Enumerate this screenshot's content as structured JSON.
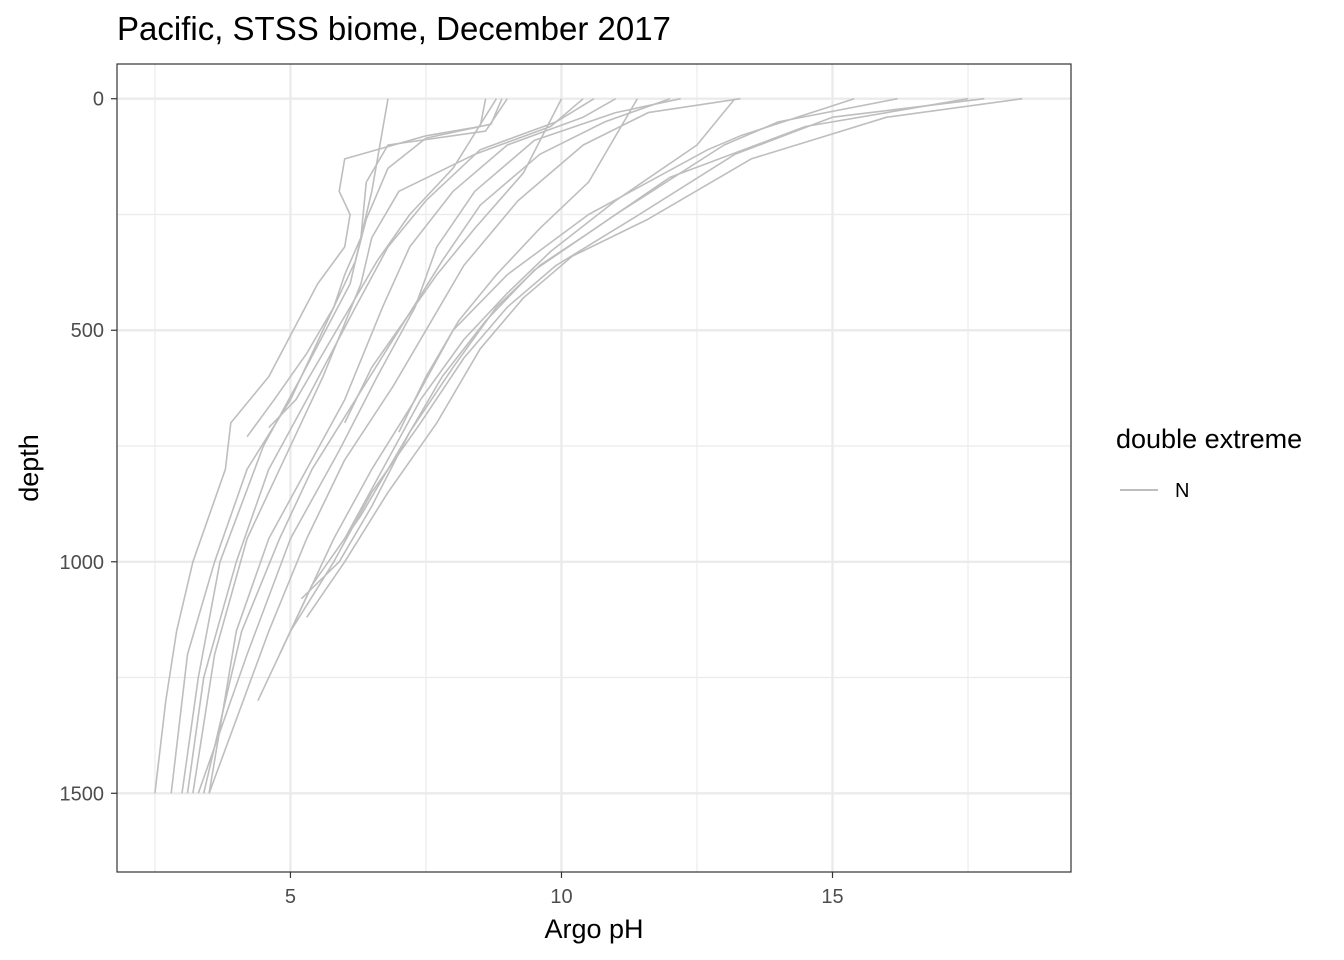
{
  "chart_data": {
    "type": "line",
    "title": "Pacific, STSS biome, December 2017",
    "xlabel": "Argo pH",
    "ylabel": "depth",
    "xlim": [
      1.8,
      19.4
    ],
    "ylim": [
      1670,
      -75
    ],
    "y_reversed": true,
    "xticks": [
      5,
      10,
      15
    ],
    "yticks": [
      0,
      500,
      1000,
      1500
    ],
    "grid": true,
    "line_color": "#bebebe",
    "legend": {
      "title": "double extreme",
      "placement": "right",
      "entries": [
        "N"
      ]
    },
    "series": [
      {
        "x": [
          8.6,
          8.5,
          7.5,
          6.0,
          5.9,
          6.1,
          6.0,
          5.5,
          4.6,
          3.9,
          3.8,
          3.2,
          2.9,
          2.7,
          2.5
        ],
        "y": [
          0,
          60,
          80,
          130,
          200,
          250,
          320,
          400,
          600,
          700,
          800,
          1000,
          1150,
          1300,
          1500
        ]
      },
      {
        "x": [
          8.9,
          8.7,
          7.5,
          6.8,
          6.4,
          6.2,
          5.6,
          5.0,
          4.2,
          3.6,
          3.1,
          2.8
        ],
        "y": [
          0,
          55,
          85,
          150,
          260,
          350,
          500,
          650,
          800,
          1000,
          1200,
          1500
        ]
      },
      {
        "x": [
          9.0,
          8.6,
          6.8,
          6.4,
          6.3,
          6.1,
          5.2,
          4.5,
          3.7,
          3.3,
          3.0
        ],
        "y": [
          0,
          70,
          100,
          180,
          300,
          400,
          600,
          750,
          1000,
          1250,
          1500
        ]
      },
      {
        "x": [
          10.4,
          9.8,
          8.4,
          7.0,
          6.5,
          6.3,
          5.6,
          4.8,
          4.2,
          3.6,
          3.2
        ],
        "y": [
          0,
          60,
          120,
          200,
          300,
          400,
          600,
          800,
          950,
          1200,
          1500
        ]
      },
      {
        "x": [
          10.6,
          9.9,
          8.5,
          7.5,
          6.8,
          6.2,
          5.3,
          4.6,
          4.0,
          3.4,
          3.1
        ],
        "y": [
          0,
          50,
          110,
          220,
          320,
          450,
          650,
          800,
          1000,
          1250,
          1500
        ]
      },
      {
        "x": [
          11.0,
          10.4,
          9.0,
          8.0,
          7.2,
          6.7,
          6.0,
          5.3,
          4.6,
          4.0,
          3.5
        ],
        "y": [
          0,
          40,
          100,
          200,
          320,
          450,
          650,
          800,
          950,
          1150,
          1500
        ]
      },
      {
        "x": [
          12.2,
          11.0,
          9.5,
          8.4,
          7.7,
          7.3,
          6.6,
          5.9,
          5.0,
          4.2,
          3.3
        ],
        "y": [
          0,
          30,
          90,
          200,
          320,
          450,
          600,
          760,
          950,
          1200,
          1500
        ]
      },
      {
        "x": [
          12.0,
          10.8,
          9.6,
          8.5,
          7.8,
          7.0,
          6.2,
          5.4,
          4.8,
          4.1,
          3.4
        ],
        "y": [
          0,
          50,
          120,
          230,
          350,
          500,
          650,
          800,
          950,
          1150,
          1500
        ]
      },
      {
        "x": [
          13.3,
          11.6,
          10.4,
          9.2,
          8.2,
          7.5,
          6.9,
          6.0,
          5.3,
          4.6,
          3.5
        ],
        "y": [
          0,
          30,
          100,
          220,
          360,
          500,
          620,
          780,
          950,
          1150,
          1500
        ]
      },
      {
        "x": [
          15.4,
          13.3,
          12.7,
          10.5,
          9.0,
          8.0,
          7.3,
          6.5,
          5.8,
          5.0,
          4.4
        ],
        "y": [
          0,
          80,
          110,
          250,
          380,
          500,
          650,
          800,
          950,
          1150,
          1300
        ]
      },
      {
        "x": [
          16.2,
          14.0,
          13.0,
          11.0,
          9.5,
          8.6,
          7.8,
          7.1,
          6.3,
          5.4,
          4.8
        ],
        "y": [
          0,
          50,
          100,
          250,
          370,
          480,
          600,
          740,
          900,
          1050,
          1200
        ]
      },
      {
        "x": [
          17.8,
          15.0,
          13.2,
          11.3,
          9.9,
          9.0,
          8.2,
          7.4,
          6.5,
          5.8,
          5.0
        ],
        "y": [
          0,
          40,
          120,
          260,
          360,
          450,
          560,
          700,
          850,
          1000,
          1150
        ]
      },
      {
        "x": [
          18.5,
          16.0,
          13.5,
          11.6,
          10.2,
          9.3,
          8.5,
          7.7,
          6.8,
          6.0,
          5.3
        ],
        "y": [
          0,
          40,
          130,
          260,
          340,
          430,
          540,
          700,
          850,
          1000,
          1120
        ]
      },
      {
        "x": [
          17.5,
          14.5,
          12.0,
          10.5,
          9.6,
          8.8,
          8.0,
          7.2,
          6.5,
          5.9,
          5.2
        ],
        "y": [
          0,
          60,
          170,
          290,
          360,
          450,
          580,
          720,
          880,
          1000,
          1080
        ]
      },
      {
        "x": [
          13.2,
          12.5,
          11.0,
          9.8,
          9.0,
          8.2,
          7.4,
          6.7,
          6.0
        ],
        "y": [
          0,
          100,
          220,
          330,
          420,
          520,
          650,
          800,
          950
        ]
      },
      {
        "x": [
          6.8,
          6.5,
          6.3,
          6.0,
          5.8,
          5.3,
          4.7,
          4.2
        ],
        "y": [
          0,
          200,
          300,
          380,
          450,
          550,
          650,
          730
        ]
      },
      {
        "x": [
          8.8,
          8.0,
          7.2,
          6.6,
          6.1,
          5.6,
          5.1,
          4.6
        ],
        "y": [
          0,
          150,
          250,
          350,
          450,
          550,
          650,
          710
        ]
      },
      {
        "x": [
          10.0,
          9.3,
          8.4,
          7.7,
          7.1,
          6.5,
          6.0
        ],
        "y": [
          0,
          160,
          280,
          380,
          480,
          580,
          700
        ]
      },
      {
        "x": [
          11.4,
          10.5,
          9.6,
          8.8,
          8.1,
          7.5,
          7.0
        ],
        "y": [
          0,
          180,
          280,
          380,
          480,
          600,
          720
        ]
      }
    ]
  }
}
